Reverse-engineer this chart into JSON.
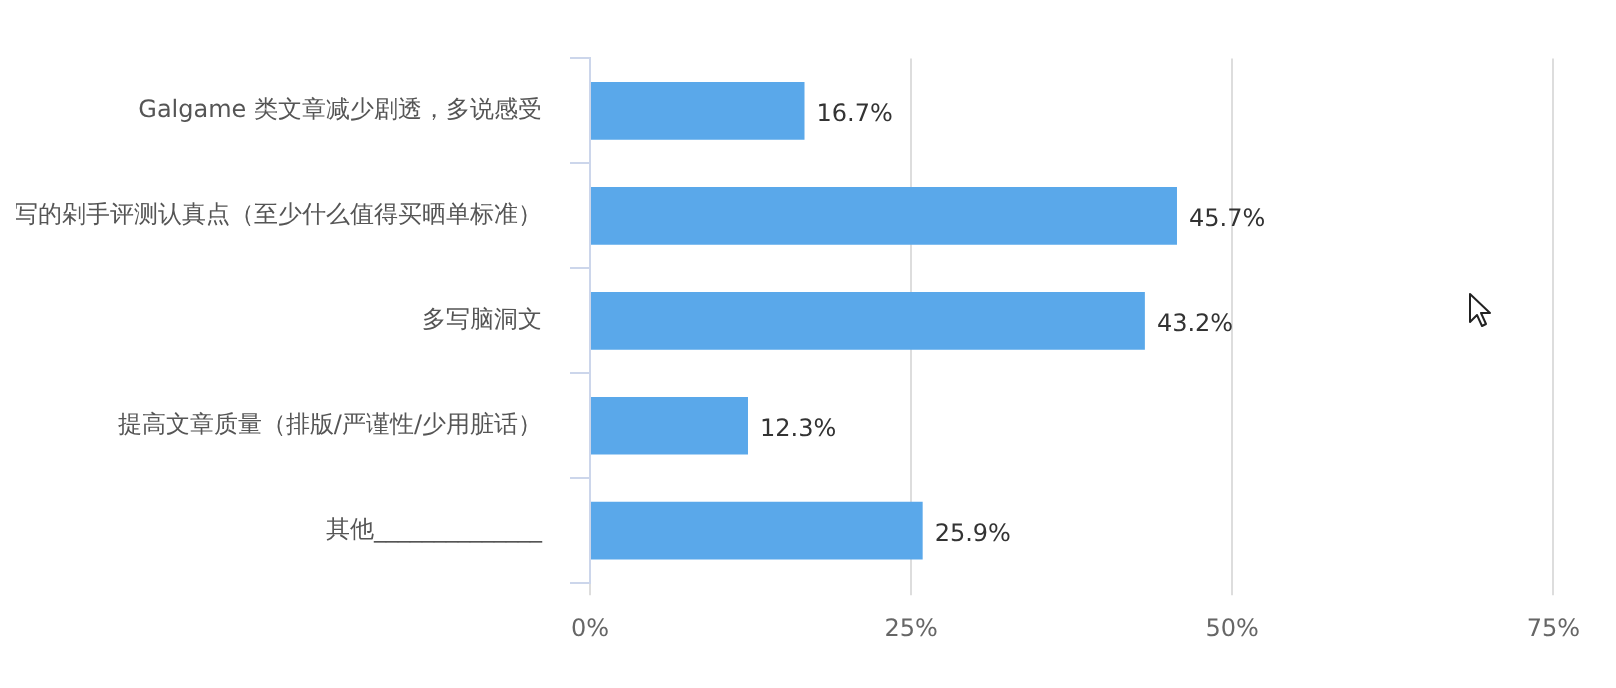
{
  "chart_data": {
    "type": "bar",
    "orientation": "horizontal",
    "categories": [
      "Galgame 类文章减少剧透，多说感受",
      "写的剁手评测认真点（至少什么值得买晒单标准）",
      "多写脑洞文",
      "提高文章质量（排版/严谨性/少用脏话）",
      "其他______________"
    ],
    "values": [
      16.7,
      45.7,
      43.2,
      12.3,
      25.9
    ],
    "value_labels": [
      "16.7%",
      "45.7%",
      "43.2%",
      "12.3%",
      "25.9%"
    ],
    "color": "#5aa8ea",
    "xlim": [
      0,
      75
    ],
    "xticks": [
      {
        "value": 0,
        "label": "0%"
      },
      {
        "value": 25,
        "label": "25%"
      },
      {
        "value": 50,
        "label": "50%"
      },
      {
        "value": 75,
        "label": "75%"
      }
    ],
    "grid": "x"
  }
}
